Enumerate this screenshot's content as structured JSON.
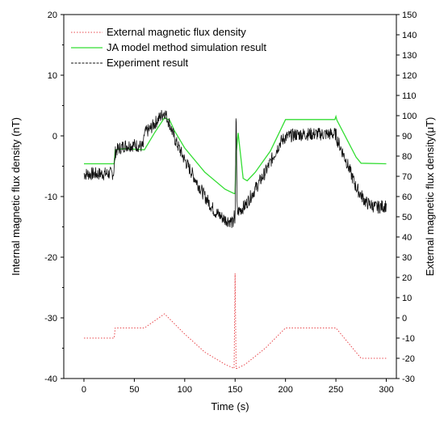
{
  "chart_data": {
    "type": "line",
    "xlabel": "Time (s)",
    "ylabel_left": "Internal magnetic flux density (nT)",
    "ylabel_right": "External magnetic flux density(μT)",
    "xlim": [
      -20,
      310
    ],
    "ylim_left": [
      -40,
      20
    ],
    "ylim_right": [
      -30,
      150
    ],
    "x_ticks": [
      0,
      50,
      100,
      150,
      200,
      250,
      300
    ],
    "y_ticks_left": [
      -40,
      -30,
      -20,
      -10,
      0,
      10,
      20
    ],
    "y_ticks_right": [
      -30,
      -20,
      -10,
      0,
      10,
      20,
      30,
      40,
      50,
      60,
      70,
      80,
      90,
      100,
      110,
      120,
      130,
      140,
      150
    ],
    "x_tick_labels": [
      "0",
      "50",
      "100",
      "150",
      "200",
      "250",
      "300"
    ],
    "y_tick_labels_left": [
      "-40",
      "-30",
      "-20",
      "-10",
      "0",
      "10",
      "20"
    ],
    "y_tick_labels_right": [
      "-30",
      "-20",
      "-10",
      "0",
      "10",
      "20",
      "30",
      "40",
      "50",
      "60",
      "70",
      "80",
      "90",
      "100",
      "110",
      "120",
      "130",
      "140",
      "150"
    ],
    "legend_position": "top-left",
    "series": [
      {
        "name": "External magnetic flux density",
        "axis": "right",
        "style": "dotted",
        "color": "#e8474c",
        "x": [
          0,
          30,
          31,
          60,
          80,
          100,
          120,
          140,
          149,
          150,
          151,
          152,
          160,
          180,
          200,
          250,
          275,
          300
        ],
        "y": [
          -10,
          -10,
          -5,
          -5,
          2,
          -8,
          -17,
          -23,
          -25,
          22,
          -25,
          -25,
          -23,
          -15,
          -5,
          -5,
          -20,
          -20
        ]
      },
      {
        "name": "JA model method simulation result",
        "axis": "left",
        "style": "solid",
        "color": "#33dd33",
        "x": [
          0,
          30,
          31,
          40,
          60,
          70,
          80,
          85,
          90,
          100,
          120,
          140,
          149,
          150,
          151,
          153,
          158,
          162,
          170,
          185,
          200,
          249,
          250,
          251,
          260,
          270,
          275,
          300
        ],
        "y": [
          -4.6,
          -4.6,
          -2.3,
          -2.1,
          -2.3,
          0.5,
          3.0,
          2.6,
          0.8,
          -2.0,
          -6.0,
          -8.8,
          -9.5,
          -9.5,
          -3,
          0.5,
          -7.0,
          -7.4,
          -6.0,
          -2.5,
          2.7,
          2.7,
          3.2,
          2.6,
          -0.3,
          -3.5,
          -4.5,
          -4.6
        ]
      },
      {
        "name": "Experiment result",
        "axis": "left",
        "style": "dashed",
        "color": "#111111",
        "x": [
          0,
          29,
          30,
          31,
          32,
          40,
          50,
          59,
          60,
          65,
          70,
          75,
          80,
          85,
          90,
          100,
          110,
          120,
          130,
          140,
          145,
          148,
          149,
          150,
          151,
          152,
          153,
          160,
          180,
          195,
          200,
          210,
          220,
          240,
          250,
          251,
          260,
          270,
          280,
          290,
          300
        ],
        "y": [
          -6.3,
          -6.2,
          -5.5,
          -2.8,
          -2.4,
          -1.6,
          -1.5,
          -1.8,
          0.5,
          1.0,
          2.0,
          3.0,
          4.0,
          2.0,
          -0.5,
          -4.0,
          -7.0,
          -10.0,
          -12.5,
          -13.8,
          -14.0,
          -14.5,
          -13.0,
          -14.8,
          6.0,
          -13.0,
          -12.5,
          -11.5,
          -6.0,
          -1.0,
          -0.2,
          0.2,
          0.3,
          0.3,
          0.3,
          -0.5,
          -4.0,
          -8.5,
          -11.0,
          -11.8,
          -11.5
        ]
      }
    ]
  }
}
